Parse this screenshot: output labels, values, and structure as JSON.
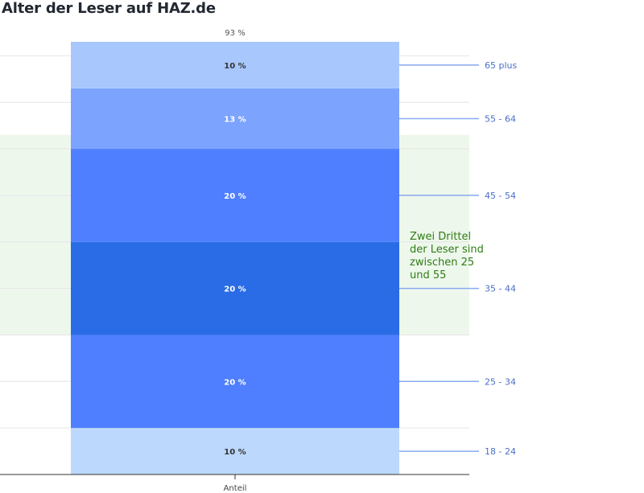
{
  "chart_data": {
    "type": "bar",
    "stacked": true,
    "title": "Alter der Leser auf HAZ.de",
    "categories": [
      "Anteil"
    ],
    "total_label": "93 %",
    "segments": [
      {
        "name": "18 - 24",
        "value": 10,
        "label": "10 %",
        "color": "#bcd8fc"
      },
      {
        "name": "25 - 34",
        "value": 20,
        "label": "20 %",
        "color": "#4f7ffe"
      },
      {
        "name": "35 - 44",
        "value": 20,
        "label": "20 %",
        "color": "#2a6ce6"
      },
      {
        "name": "45 - 54",
        "value": 20,
        "label": "20 %",
        "color": "#4f7ffe"
      },
      {
        "name": "55 - 64",
        "value": 13,
        "label": "13 %",
        "color": "#7ca3fe"
      },
      {
        "name": "65 plus",
        "value": 10,
        "label": "10 %",
        "color": "#a8c8fd"
      }
    ],
    "ylim": [
      0,
      93
    ],
    "grid": true,
    "highlight": {
      "from": 30,
      "to": 73,
      "color": "#eef7ec"
    },
    "annotation": "Zwei Drittel der Leser sind zwischen 25 und 55",
    "colors": {
      "title": "#222831",
      "segment_label": "#ffffff",
      "edge_label": "#333333",
      "leader": "#88aaf0",
      "legend_text": "#4a6fc9",
      "annotation": "#2e7d14",
      "axis": "#333333",
      "grid": "#e6e6e6"
    }
  }
}
